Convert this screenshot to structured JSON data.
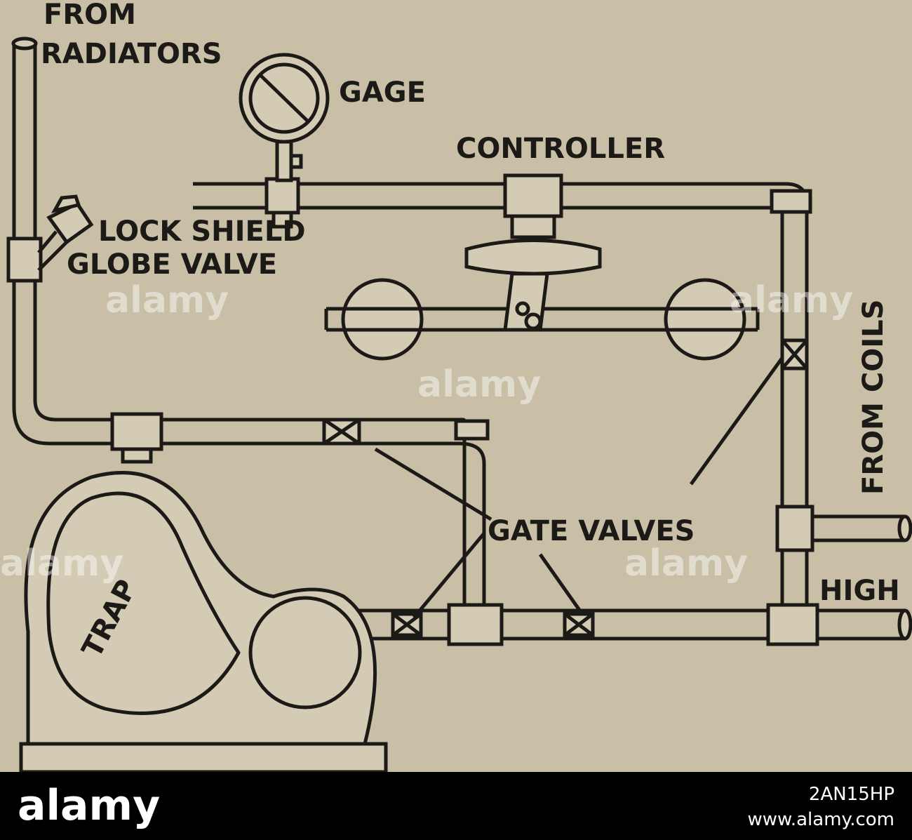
{
  "labels": {
    "from": "FROM",
    "radiators": "RADIATORS",
    "gage": "GAGE",
    "controller": "CONTROLLER",
    "lock_shield": "LOCK SHIELD",
    "globe_valve": "GLOBE VALVE",
    "from_coils": "FROM COILS",
    "gate_valves": "GATE VALVES",
    "trap": "TRAP",
    "high": "HIGH"
  },
  "watermark": "alamy",
  "footer": {
    "logo": "alamy",
    "image_id": "2AN15HP",
    "url": "www.alamy.com"
  }
}
